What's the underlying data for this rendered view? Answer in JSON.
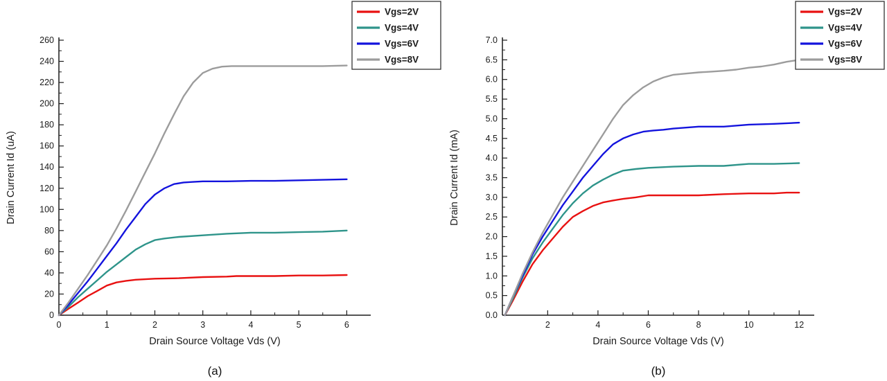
{
  "figure": {
    "captions": {
      "a": "(a)",
      "b": "(b)"
    }
  },
  "colors": {
    "axis": "#1a1a1a",
    "text": "#1a1a1a",
    "legend_border": "#333333",
    "legend_bg": "#ffffff"
  },
  "chart_data": [
    {
      "id": "chart-a",
      "type": "line",
      "title": "",
      "xlabel": "Drain Source Voltage Vds (V)",
      "ylabel": "Drain Current Id (uA)",
      "caption": "(a)",
      "xlim": [
        0,
        6.5
      ],
      "ylim": [
        0,
        260
      ],
      "xticks": [
        0,
        1,
        2,
        3,
        4,
        5,
        6
      ],
      "yticks": [
        0,
        20,
        40,
        60,
        80,
        100,
        120,
        140,
        160,
        180,
        200,
        220,
        240,
        260
      ],
      "xtick_decimals": 0,
      "ytick_decimals": 0,
      "grid": false,
      "legend_position": "top-right",
      "series": [
        {
          "name": "Vgs=2V",
          "color": "#e81111",
          "points": [
            [
              0,
              0
            ],
            [
              0.2,
              6
            ],
            [
              0.4,
              12
            ],
            [
              0.6,
              18
            ],
            [
              0.8,
              23
            ],
            [
              1.0,
              28
            ],
            [
              1.2,
              31
            ],
            [
              1.4,
              32.5
            ],
            [
              1.6,
              33.5
            ],
            [
              1.8,
              34
            ],
            [
              2.0,
              34.5
            ],
            [
              2.5,
              35
            ],
            [
              3.0,
              36
            ],
            [
              3.5,
              36.5
            ],
            [
              3.7,
              37
            ],
            [
              4.0,
              37
            ],
            [
              4.5,
              37
            ],
            [
              5.0,
              37.5
            ],
            [
              5.5,
              37.5
            ],
            [
              6.0,
              38
            ]
          ]
        },
        {
          "name": "Vgs=4V",
          "color": "#2e948a",
          "points": [
            [
              0,
              0
            ],
            [
              0.2,
              8
            ],
            [
              0.4,
              17
            ],
            [
              0.6,
              25
            ],
            [
              0.8,
              33
            ],
            [
              1.0,
              41
            ],
            [
              1.2,
              48
            ],
            [
              1.4,
              55
            ],
            [
              1.6,
              62
            ],
            [
              1.8,
              67
            ],
            [
              2.0,
              71
            ],
            [
              2.2,
              72.5
            ],
            [
              2.5,
              74
            ],
            [
              3.0,
              75.5
            ],
            [
              3.5,
              77
            ],
            [
              4.0,
              78
            ],
            [
              4.5,
              78
            ],
            [
              5.0,
              78.5
            ],
            [
              5.5,
              79
            ],
            [
              6.0,
              80
            ]
          ]
        },
        {
          "name": "Vgs=6V",
          "color": "#1313dd",
          "points": [
            [
              0,
              0
            ],
            [
              0.2,
              10
            ],
            [
              0.4,
              21
            ],
            [
              0.6,
              32
            ],
            [
              0.8,
              44
            ],
            [
              1.0,
              56
            ],
            [
              1.2,
              68
            ],
            [
              1.4,
              81
            ],
            [
              1.6,
              93
            ],
            [
              1.8,
              105
            ],
            [
              2.0,
              114
            ],
            [
              2.2,
              120
            ],
            [
              2.4,
              124
            ],
            [
              2.6,
              125.5
            ],
            [
              2.8,
              126
            ],
            [
              3.0,
              126.5
            ],
            [
              3.5,
              126.5
            ],
            [
              4.0,
              127
            ],
            [
              4.5,
              127
            ],
            [
              5.0,
              127.5
            ],
            [
              5.5,
              128
            ],
            [
              6.0,
              128.5
            ]
          ]
        },
        {
          "name": "Vgs=8V",
          "color": "#9c9c9c",
          "points": [
            [
              0,
              0
            ],
            [
              0.2,
              12
            ],
            [
              0.4,
              25
            ],
            [
              0.6,
              38
            ],
            [
              0.8,
              52
            ],
            [
              1.0,
              66
            ],
            [
              1.2,
              82
            ],
            [
              1.4,
              99
            ],
            [
              1.6,
              117
            ],
            [
              1.8,
              135
            ],
            [
              2.0,
              153
            ],
            [
              2.2,
              172
            ],
            [
              2.4,
              190
            ],
            [
              2.6,
              207
            ],
            [
              2.8,
              220
            ],
            [
              3.0,
              229
            ],
            [
              3.2,
              233
            ],
            [
              3.4,
              235
            ],
            [
              3.6,
              235.5
            ],
            [
              4.0,
              235.5
            ],
            [
              4.5,
              235.5
            ],
            [
              5.0,
              235.5
            ],
            [
              5.5,
              235.5
            ],
            [
              6.0,
              236
            ]
          ]
        }
      ]
    },
    {
      "id": "chart-b",
      "type": "line",
      "title": "",
      "xlabel": "Drain Source Voltage Vds (V)",
      "ylabel": "Drain Current Id (mA)",
      "caption": "(b)",
      "xlim": [
        0.2,
        12.6
      ],
      "ylim": [
        0,
        7.0
      ],
      "xticks": [
        2,
        4,
        6,
        8,
        10,
        12
      ],
      "yticks": [
        0.0,
        0.5,
        1.0,
        1.5,
        2.0,
        2.5,
        3.0,
        3.5,
        4.0,
        4.5,
        5.0,
        5.5,
        6.0,
        6.5,
        7.0
      ],
      "xtick_decimals": 0,
      "ytick_decimals": 1,
      "grid": false,
      "legend_position": "top-right",
      "series": [
        {
          "name": "Vgs=2V",
          "color": "#e81111",
          "points": [
            [
              0.3,
              0
            ],
            [
              0.6,
              0.35
            ],
            [
              1.0,
              0.85
            ],
            [
              1.4,
              1.3
            ],
            [
              1.8,
              1.65
            ],
            [
              2.2,
              1.95
            ],
            [
              2.6,
              2.25
            ],
            [
              3.0,
              2.5
            ],
            [
              3.4,
              2.65
            ],
            [
              3.8,
              2.78
            ],
            [
              4.2,
              2.87
            ],
            [
              4.6,
              2.92
            ],
            [
              5.0,
              2.96
            ],
            [
              5.5,
              3.0
            ],
            [
              6.0,
              3.05
            ],
            [
              7.0,
              3.05
            ],
            [
              8.0,
              3.05
            ],
            [
              9.0,
              3.08
            ],
            [
              10.0,
              3.1
            ],
            [
              11.0,
              3.1
            ],
            [
              11.5,
              3.12
            ],
            [
              12.0,
              3.12
            ]
          ]
        },
        {
          "name": "Vgs=4V",
          "color": "#2e948a",
          "points": [
            [
              0.3,
              0
            ],
            [
              0.6,
              0.4
            ],
            [
              1.0,
              0.95
            ],
            [
              1.4,
              1.45
            ],
            [
              1.8,
              1.85
            ],
            [
              2.2,
              2.2
            ],
            [
              2.6,
              2.55
            ],
            [
              3.0,
              2.85
            ],
            [
              3.4,
              3.1
            ],
            [
              3.8,
              3.3
            ],
            [
              4.2,
              3.45
            ],
            [
              4.6,
              3.58
            ],
            [
              5.0,
              3.68
            ],
            [
              5.5,
              3.72
            ],
            [
              6.0,
              3.75
            ],
            [
              7.0,
              3.78
            ],
            [
              8.0,
              3.8
            ],
            [
              9.0,
              3.8
            ],
            [
              10.0,
              3.85
            ],
            [
              11.0,
              3.85
            ],
            [
              12.0,
              3.87
            ]
          ]
        },
        {
          "name": "Vgs=6V",
          "color": "#1313dd",
          "points": [
            [
              0.3,
              0
            ],
            [
              0.6,
              0.45
            ],
            [
              1.0,
              1.0
            ],
            [
              1.4,
              1.55
            ],
            [
              1.8,
              2.0
            ],
            [
              2.2,
              2.4
            ],
            [
              2.6,
              2.8
            ],
            [
              3.0,
              3.15
            ],
            [
              3.4,
              3.5
            ],
            [
              3.8,
              3.8
            ],
            [
              4.2,
              4.1
            ],
            [
              4.6,
              4.35
            ],
            [
              5.0,
              4.5
            ],
            [
              5.4,
              4.6
            ],
            [
              5.8,
              4.67
            ],
            [
              6.2,
              4.7
            ],
            [
              6.6,
              4.72
            ],
            [
              7.0,
              4.75
            ],
            [
              8.0,
              4.8
            ],
            [
              9.0,
              4.8
            ],
            [
              10.0,
              4.85
            ],
            [
              11.0,
              4.87
            ],
            [
              12.0,
              4.9
            ]
          ]
        },
        {
          "name": "Vgs=8V",
          "color": "#9c9c9c",
          "points": [
            [
              0.3,
              0
            ],
            [
              0.6,
              0.45
            ],
            [
              1.0,
              1.05
            ],
            [
              1.4,
              1.6
            ],
            [
              1.8,
              2.1
            ],
            [
              2.2,
              2.55
            ],
            [
              2.6,
              3.0
            ],
            [
              3.0,
              3.4
            ],
            [
              3.4,
              3.8
            ],
            [
              3.8,
              4.2
            ],
            [
              4.2,
              4.6
            ],
            [
              4.6,
              5.0
            ],
            [
              5.0,
              5.35
            ],
            [
              5.4,
              5.6
            ],
            [
              5.8,
              5.8
            ],
            [
              6.2,
              5.95
            ],
            [
              6.6,
              6.05
            ],
            [
              7.0,
              6.12
            ],
            [
              7.5,
              6.15
            ],
            [
              8.0,
              6.18
            ],
            [
              8.5,
              6.2
            ],
            [
              9.0,
              6.22
            ],
            [
              9.5,
              6.25
            ],
            [
              10.0,
              6.3
            ],
            [
              10.5,
              6.33
            ],
            [
              11.0,
              6.38
            ],
            [
              11.5,
              6.45
            ],
            [
              12.0,
              6.5
            ]
          ]
        }
      ]
    }
  ]
}
